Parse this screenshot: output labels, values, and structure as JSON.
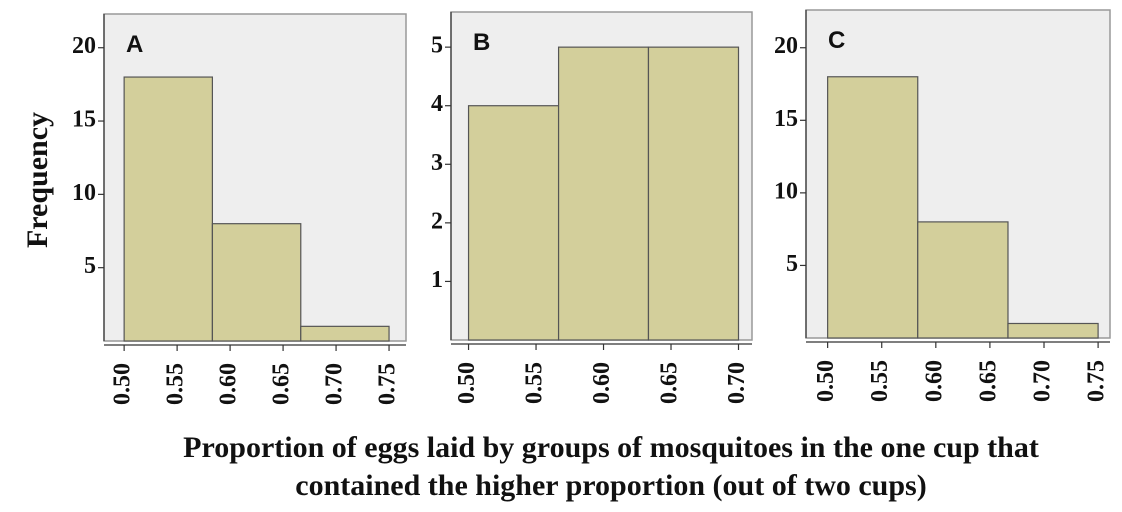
{
  "ylabel": "Frequency",
  "xlabel": [
    "Proportion of eggs laid by groups of mosquitoes in the one cup that",
    "contained the higher proportion (out of two cups)"
  ],
  "chart_data": [
    {
      "type": "histogram",
      "label": "A",
      "color": "#d3cf9b",
      "bins": [
        0.5,
        0.5833,
        0.6667,
        0.75
      ],
      "values": [
        18,
        8,
        1
      ],
      "xlim": [
        0.481,
        0.766
      ],
      "ylim": [
        0,
        22.3
      ],
      "xticks": [
        {
          "value": 0.5,
          "label": "0.50"
        },
        0.55,
        {
          "value": 0.6,
          "label": "0.60"
        },
        0.65,
        {
          "value": 0.7,
          "label": "0.70"
        },
        0.75
      ],
      "yticks": [
        5,
        10,
        15,
        20
      ]
    },
    {
      "type": "histogram",
      "label": "B",
      "color": "#d3cf9b",
      "bins": [
        0.5,
        0.5667,
        0.6333,
        0.7
      ],
      "values": [
        4,
        5,
        5
      ],
      "xlim": [
        0.487,
        0.71
      ],
      "ylim": [
        0,
        5.6
      ],
      "xticks": [
        {
          "value": 0.5,
          "label": "0.50"
        },
        0.55,
        {
          "value": 0.6,
          "label": "0.60"
        },
        0.65,
        {
          "value": 0.7,
          "label": "0.70"
        }
      ],
      "yticks": [
        1,
        2,
        3,
        4,
        5
      ]
    },
    {
      "type": "histogram",
      "label": "C",
      "color": "#d3cf9b",
      "bins": [
        0.5,
        0.5833,
        0.6667,
        0.75
      ],
      "values": [
        18,
        8,
        1
      ],
      "xlim": [
        0.48,
        0.761
      ],
      "ylim": [
        0,
        22.6
      ],
      "xticks": [
        {
          "value": 0.5,
          "label": "0.50"
        },
        0.55,
        {
          "value": 0.6,
          "label": "0.60"
        },
        0.65,
        {
          "value": 0.7,
          "label": "0.70"
        },
        0.75
      ],
      "yticks": [
        5,
        10,
        15,
        20
      ]
    }
  ]
}
